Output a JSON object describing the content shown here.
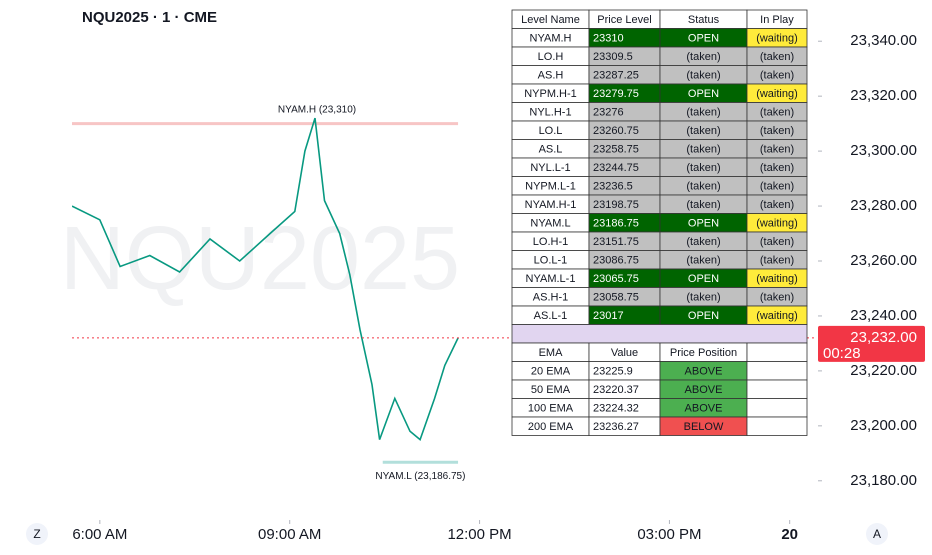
{
  "chart_data": {
    "type": "line",
    "title": "NQU2025 · 1 · CME",
    "watermark": "NQU2025",
    "xlim": [
      5.56,
      17.3
    ],
    "xticks": [
      {
        "value": 6,
        "label": "6:00 AM"
      },
      {
        "value": 9,
        "label": "09:00 AM"
      },
      {
        "value": 12,
        "label": "12:00 PM"
      },
      {
        "value": 15,
        "label": "03:00 PM"
      },
      {
        "value": 16.9,
        "label": "20"
      }
    ],
    "ylim": [
      23165,
      23355
    ],
    "yticks": [
      {
        "value": 23340,
        "label": "23,340.00"
      },
      {
        "value": 23320,
        "label": "23,320.00"
      },
      {
        "value": 23300,
        "label": "23,300.00"
      },
      {
        "value": 23280,
        "label": "23,280.00"
      },
      {
        "value": 23260,
        "label": "23,260.00"
      },
      {
        "value": 23240,
        "label": "23,240.00"
      },
      {
        "value": 23220,
        "label": "23,220.00"
      },
      {
        "value": 23200,
        "label": "23,200.00"
      },
      {
        "value": 23180,
        "label": "23,180.00"
      }
    ],
    "series": [
      {
        "name": "NQU2025",
        "color": "#089981",
        "x": [
          5.56,
          6.0,
          6.32,
          6.79,
          7.26,
          7.74,
          8.21,
          8.69,
          9.08,
          9.24,
          9.4,
          9.55,
          9.79,
          9.95,
          10.11,
          10.3,
          10.42,
          10.66,
          10.9,
          11.06,
          11.29,
          11.45,
          11.66
        ],
        "values": [
          23280,
          23275,
          23258,
          23262,
          23256,
          23268,
          23260,
          23270,
          23278,
          23300,
          23312,
          23282,
          23270,
          23255,
          23235,
          23215,
          23195,
          23210,
          23198,
          23195,
          23210,
          23222,
          23232
        ]
      }
    ],
    "annotations": [
      {
        "text": "NYAM.H (23,310)",
        "value": 23310,
        "x": [
          5.56,
          11.66
        ],
        "color": "#f7c5c5"
      },
      {
        "text": "NYAM.L (23,186.75)",
        "value": 23186.75,
        "x": [
          10.47,
          11.66
        ],
        "color": "#b2dfdb"
      }
    ],
    "current_price": {
      "value": 23232,
      "label": "23,232.00",
      "countdown": "00:28",
      "color": "#f23645"
    }
  },
  "level_table": {
    "header": [
      "Level Name",
      "Price Level",
      "Status",
      "In Play"
    ],
    "rows": [
      {
        "cells": [
          "NYAM.H",
          "23310",
          "OPEN",
          "(waiting)"
        ],
        "color": "#006400"
      },
      {
        "cells": [
          "LO.H",
          "23309.5",
          "(taken)",
          "(taken)"
        ],
        "color": "#c0c0c0"
      },
      {
        "cells": [
          "AS.H",
          "23287.25",
          "(taken)",
          "(taken)"
        ],
        "color": "#c0c0c0"
      },
      {
        "cells": [
          "NYPM.H-1",
          "23279.75",
          "OPEN",
          "(waiting)"
        ],
        "color": "#006400"
      },
      {
        "cells": [
          "NYL.H-1",
          "23276",
          "(taken)",
          "(taken)"
        ],
        "color": "#c0c0c0"
      },
      {
        "cells": [
          "LO.L",
          "23260.75",
          "(taken)",
          "(taken)"
        ],
        "color": "#c0c0c0"
      },
      {
        "cells": [
          "AS.L",
          "23258.75",
          "(taken)",
          "(taken)"
        ],
        "color": "#c0c0c0"
      },
      {
        "cells": [
          "NYL.L-1",
          "23244.75",
          "(taken)",
          "(taken)"
        ],
        "color": "#c0c0c0"
      },
      {
        "cells": [
          "NYPM.L-1",
          "23236.5",
          "(taken)",
          "(taken)"
        ],
        "color": "#c0c0c0"
      },
      {
        "cells": [
          "NYAM.H-1",
          "23198.75",
          "(taken)",
          "(taken)"
        ],
        "color": "#c0c0c0"
      },
      {
        "cells": [
          "NYAM.L",
          "23186.75",
          "OPEN",
          "(waiting)"
        ],
        "color": "#006400"
      },
      {
        "cells": [
          "LO.H-1",
          "23151.75",
          "(taken)",
          "(taken)"
        ],
        "color": "#c0c0c0"
      },
      {
        "cells": [
          "LO.L-1",
          "23086.75",
          "(taken)",
          "(taken)"
        ],
        "color": "#c0c0c0"
      },
      {
        "cells": [
          "NYAM.L-1",
          "23065.75",
          "OPEN",
          "(waiting)"
        ],
        "color": "#006400"
      },
      {
        "cells": [
          "AS.H-1",
          "23058.75",
          "(taken)",
          "(taken)"
        ],
        "color": "#c0c0c0"
      },
      {
        "cells": [
          "AS.L-1",
          "23017",
          "OPEN",
          "(waiting)"
        ],
        "color": "#006400"
      }
    ]
  },
  "ema_table": {
    "header": [
      "EMA",
      "Value",
      "Price Position"
    ],
    "rows": [
      {
        "cells": [
          "20 EMA",
          "23225.9",
          "ABOVE"
        ],
        "color": "#4caf50"
      },
      {
        "cells": [
          "50 EMA",
          "23220.37",
          "ABOVE"
        ],
        "color": "#4caf50"
      },
      {
        "cells": [
          "100 EMA",
          "23224.32",
          "ABOVE"
        ],
        "color": "#4caf50"
      },
      {
        "cells": [
          "200 EMA",
          "23236.27",
          "BELOW"
        ],
        "color": "#f05050"
      }
    ]
  },
  "buttons": {
    "left": "Z",
    "right": "A"
  }
}
